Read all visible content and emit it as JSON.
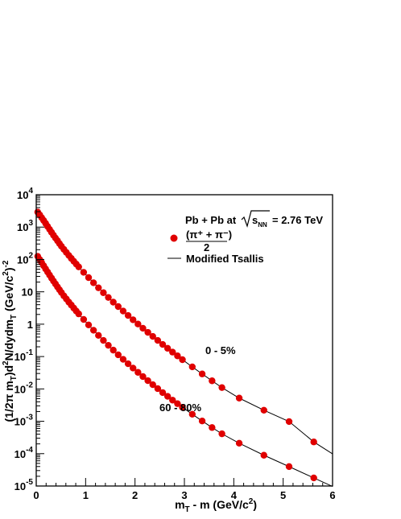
{
  "chart_data": {
    "type": "scatter",
    "title": "",
    "xlabel": "m_T - m (GeV/c^2)",
    "ylabel": "(1/2π m_T)d^2N/dydm_T (GeV/c^2)^-2",
    "xlim": [
      0,
      6
    ],
    "ylim": [
      1e-05,
      10000.0
    ],
    "yscale": "log",
    "grid": false,
    "legend_position": "top-right",
    "x_ticks": [
      "0",
      "1",
      "2",
      "3",
      "4",
      "5",
      "6"
    ],
    "y_ticks": [
      {
        "base": "10",
        "exp": "-5"
      },
      {
        "base": "10",
        "exp": "-4"
      },
      {
        "base": "10",
        "exp": "-3"
      },
      {
        "base": "10",
        "exp": "-2"
      },
      {
        "base": "10",
        "exp": "-1"
      },
      {
        "base": "1",
        "exp": ""
      },
      {
        "base": "10",
        "exp": ""
      },
      {
        "base": "10",
        "exp": "2"
      },
      {
        "base": "10",
        "exp": "3"
      },
      {
        "base": "10",
        "exp": "4"
      }
    ],
    "legend": {
      "system": "Pb + Pb at",
      "energy": "= 2.76 TeV",
      "data_entry": "(π⁺ + π⁻)",
      "data_entry_denominator": "2",
      "fit_entry": "Modified Tsallis"
    },
    "series": [
      {
        "name": "0 - 5%",
        "marker_color": "#e00000",
        "fit_color": "#000000",
        "x": [
          0.03,
          0.07,
          0.11,
          0.15,
          0.19,
          0.23,
          0.27,
          0.31,
          0.35,
          0.39,
          0.43,
          0.47,
          0.51,
          0.56,
          0.61,
          0.66,
          0.71,
          0.76,
          0.81,
          0.86,
          0.96,
          1.06,
          1.16,
          1.26,
          1.36,
          1.46,
          1.56,
          1.66,
          1.76,
          1.86,
          1.96,
          2.06,
          2.16,
          2.26,
          2.36,
          2.46,
          2.56,
          2.66,
          2.76,
          2.86,
          2.96,
          3.16,
          3.36,
          3.56,
          3.76,
          4.11,
          4.61,
          5.12,
          5.62
        ],
        "y": [
          2900,
          2400,
          1950,
          1600,
          1300,
          1050,
          850,
          690,
          560,
          460,
          380,
          310,
          255,
          205,
          165,
          133,
          108,
          88,
          72,
          59,
          40,
          27.5,
          19,
          13.3,
          9.4,
          6.7,
          4.8,
          3.5,
          2.55,
          1.86,
          1.37,
          1.01,
          0.75,
          0.56,
          0.42,
          0.315,
          0.237,
          0.18,
          0.137,
          0.105,
          0.08,
          0.048,
          0.029,
          0.0178,
          0.011,
          0.0052,
          0.0022,
          0.00098,
          0.00023
        ]
      },
      {
        "name": "60 - 80%",
        "marker_color": "#e00000",
        "fit_color": "#000000",
        "x": [
          0.03,
          0.07,
          0.11,
          0.15,
          0.19,
          0.23,
          0.27,
          0.31,
          0.35,
          0.39,
          0.43,
          0.47,
          0.51,
          0.56,
          0.61,
          0.66,
          0.71,
          0.76,
          0.81,
          0.86,
          0.96,
          1.06,
          1.16,
          1.26,
          1.36,
          1.46,
          1.56,
          1.66,
          1.76,
          1.86,
          1.96,
          2.06,
          2.16,
          2.26,
          2.36,
          2.46,
          2.56,
          2.66,
          2.76,
          2.86,
          2.96,
          3.16,
          3.36,
          3.56,
          3.76,
          4.11,
          4.61,
          5.12,
          5.62
        ],
        "y": [
          125,
          100,
          80,
          64,
          51,
          41,
          33,
          26.5,
          21.5,
          17.5,
          14.2,
          11.6,
          9.5,
          7.5,
          6,
          4.8,
          3.9,
          3.15,
          2.55,
          2.08,
          1.4,
          0.95,
          0.65,
          0.45,
          0.315,
          0.222,
          0.158,
          0.113,
          0.082,
          0.06,
          0.044,
          0.0325,
          0.0241,
          0.018,
          0.0135,
          0.0102,
          0.0077,
          0.0059,
          0.0045,
          0.0035,
          0.0027,
          0.00165,
          0.00102,
          0.00064,
          0.00041,
          0.00021,
          8.93e-05,
          3.98e-05,
          1.78e-05
        ]
      }
    ]
  }
}
